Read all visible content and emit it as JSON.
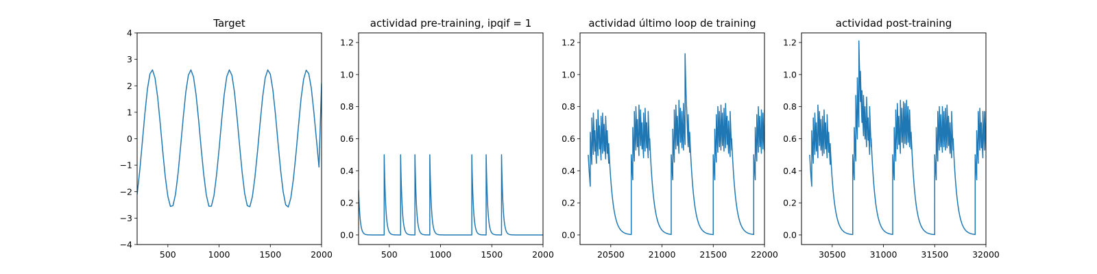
{
  "chart_data": [
    {
      "type": "line",
      "title": "Target",
      "xlim": [
        200,
        2000
      ],
      "ylim": [
        -4,
        4
      ],
      "xticks": [
        500,
        1000,
        1500,
        2000
      ],
      "yticks": [
        -4,
        -3,
        -2,
        -1,
        0,
        1,
        2,
        3,
        4
      ],
      "series": [
        {
          "color": "#1f77b4",
          "x": [
            200,
            225,
            250,
            275,
            300,
            325,
            350,
            375,
            400,
            425,
            450,
            475,
            500,
            525,
            550,
            575,
            600,
            625,
            650,
            675,
            700,
            725,
            750,
            775,
            800,
            825,
            850,
            875,
            900,
            925,
            950,
            975,
            1000,
            1025,
            1050,
            1075,
            1100,
            1125,
            1150,
            1175,
            1200,
            1225,
            1250,
            1275,
            1300,
            1325,
            1350,
            1375,
            1400,
            1425,
            1450,
            1475,
            1500,
            1525,
            1550,
            1575,
            1600,
            1625,
            1650,
            1675,
            1700,
            1725,
            1750,
            1775,
            1800,
            1825,
            1850,
            1875,
            1900,
            1925,
            1950,
            1975,
            2000
          ],
          "y": [
            -2.1,
            -1.23,
            -0.16,
            0.92,
            1.86,
            2.45,
            2.6,
            2.29,
            1.58,
            0.59,
            -0.47,
            -1.45,
            -2.18,
            -2.56,
            -2.53,
            -2.09,
            -1.29,
            -0.27,
            0.8,
            1.76,
            2.4,
            2.6,
            2.34,
            1.67,
            0.71,
            -0.36,
            -1.35,
            -2.12,
            -2.55,
            -2.55,
            -2.15,
            -1.37,
            -0.39,
            0.7,
            1.67,
            2.35,
            2.6,
            2.4,
            1.76,
            0.81,
            -0.25,
            -1.27,
            -2.08,
            -2.53,
            -2.57,
            -2.19,
            -1.44,
            -0.48,
            0.58,
            1.58,
            2.3,
            2.6,
            2.44,
            1.84,
            0.92,
            -0.15,
            -1.17,
            -2.0,
            -2.5,
            -2.58,
            -2.24,
            -1.53,
            -0.58,
            0.49,
            1.52,
            2.25,
            2.59,
            2.46,
            1.91,
            1.0,
            -0.03,
            -1.07,
            2.1
          ]
        }
      ]
    },
    {
      "type": "line",
      "title": "actividad pre-training, ipqif = 1",
      "xlim": [
        200,
        2000
      ],
      "ylim": [
        -0.06,
        1.26
      ],
      "xticks": [
        500,
        1000,
        1500,
        2000
      ],
      "yticks": [
        0.0,
        0.2,
        0.4,
        0.6,
        0.8,
        1.0,
        1.2
      ],
      "decay": 15,
      "series": [
        {
          "color": "#1f77b4",
          "x": [
            200,
            450,
            610,
            750,
            895,
            1305,
            1445,
            1595,
            2000
          ],
          "y": [
            0.28,
            0.5,
            0.5,
            0.5,
            0.5,
            0.5,
            0.5,
            0.5,
            0
          ]
        }
      ]
    },
    {
      "type": "line",
      "title": "actividad último loop de training",
      "xlim": [
        20200,
        22000
      ],
      "ylim": [
        -0.06,
        1.26
      ],
      "xticks": [
        20500,
        21000,
        21500,
        22000
      ],
      "yticks": [
        0.0,
        0.2,
        0.4,
        0.6,
        0.8,
        1.0,
        1.2
      ],
      "decay": 40,
      "series": [
        {
          "color": "#1f77b4",
          "x": [
            20280,
            20300,
            20315,
            20330,
            20345,
            20360,
            20375,
            20390,
            20405,
            20420,
            20435,
            20450,
            20465,
            20480,
            20700,
            20715,
            20730,
            20745,
            20760,
            20775,
            20790,
            20805,
            20820,
            20835,
            20850,
            20865,
            20880,
            21090,
            21105,
            21120,
            21135,
            21150,
            21165,
            21180,
            21195,
            21210,
            21225,
            21240,
            21255,
            21270,
            21500,
            21515,
            21530,
            21545,
            21560,
            21575,
            21590,
            21605,
            21620,
            21635,
            21650,
            21665,
            21680,
            21895,
            21910,
            21925,
            21940,
            21955,
            21970,
            21985,
            22000
          ],
          "y": [
            0.5,
            0.64,
            0.73,
            0.76,
            0.65,
            0.72,
            0.78,
            0.68,
            0.74,
            0.76,
            0.69,
            0.74,
            0.65,
            0.57,
            0.5,
            0.67,
            0.77,
            0.8,
            0.72,
            0.81,
            0.78,
            0.7,
            0.76,
            0.79,
            0.7,
            0.77,
            0.6,
            0.5,
            0.66,
            0.78,
            0.81,
            0.74,
            0.84,
            0.79,
            0.77,
            0.82,
            1.13,
            0.8,
            0.75,
            0.64,
            0.5,
            0.66,
            0.75,
            0.8,
            0.77,
            0.81,
            0.76,
            0.79,
            0.82,
            0.74,
            0.71,
            0.77,
            0.6,
            0.5,
            0.67,
            0.75,
            0.8,
            0.74,
            0.78,
            0.76,
            0.78
          ]
        }
      ]
    },
    {
      "type": "line",
      "title": "actividad post-training",
      "xlim": [
        30200,
        32000
      ],
      "ylim": [
        -0.06,
        1.26
      ],
      "xticks": [
        30500,
        31000,
        31500,
        32000
      ],
      "yticks": [
        0.0,
        0.2,
        0.4,
        0.6,
        0.8,
        1.0,
        1.2
      ],
      "decay": 40,
      "series": [
        {
          "color": "#1f77b4",
          "x": [
            30280,
            30300,
            30315,
            30330,
            30345,
            30360,
            30375,
            30390,
            30405,
            30420,
            30435,
            30450,
            30465,
            30480,
            30700,
            30715,
            30730,
            30745,
            30760,
            30775,
            30790,
            30805,
            30820,
            30835,
            30850,
            30865,
            30880,
            31090,
            31105,
            31120,
            31135,
            31150,
            31165,
            31180,
            31195,
            31210,
            31225,
            31240,
            31255,
            31270,
            31500,
            31515,
            31530,
            31545,
            31560,
            31575,
            31590,
            31605,
            31620,
            31635,
            31650,
            31665,
            31680,
            31895,
            31910,
            31925,
            31940,
            31955,
            31970,
            31985,
            32000
          ],
          "y": [
            0.5,
            0.65,
            0.73,
            0.76,
            0.7,
            0.81,
            0.77,
            0.72,
            0.74,
            0.78,
            0.7,
            0.75,
            0.64,
            0.57,
            0.5,
            0.67,
            0.87,
            0.98,
            1.21,
            1.02,
            0.9,
            0.87,
            0.8,
            0.86,
            0.73,
            0.8,
            0.6,
            0.5,
            0.67,
            0.78,
            0.82,
            0.74,
            0.84,
            0.79,
            0.83,
            0.82,
            0.84,
            0.8,
            0.78,
            0.64,
            0.5,
            0.67,
            0.77,
            0.8,
            0.75,
            0.8,
            0.77,
            0.79,
            0.81,
            0.74,
            0.7,
            0.77,
            0.6,
            0.5,
            0.65,
            0.77,
            0.79,
            0.7,
            0.77,
            0.77,
            0.77
          ]
        }
      ]
    }
  ]
}
